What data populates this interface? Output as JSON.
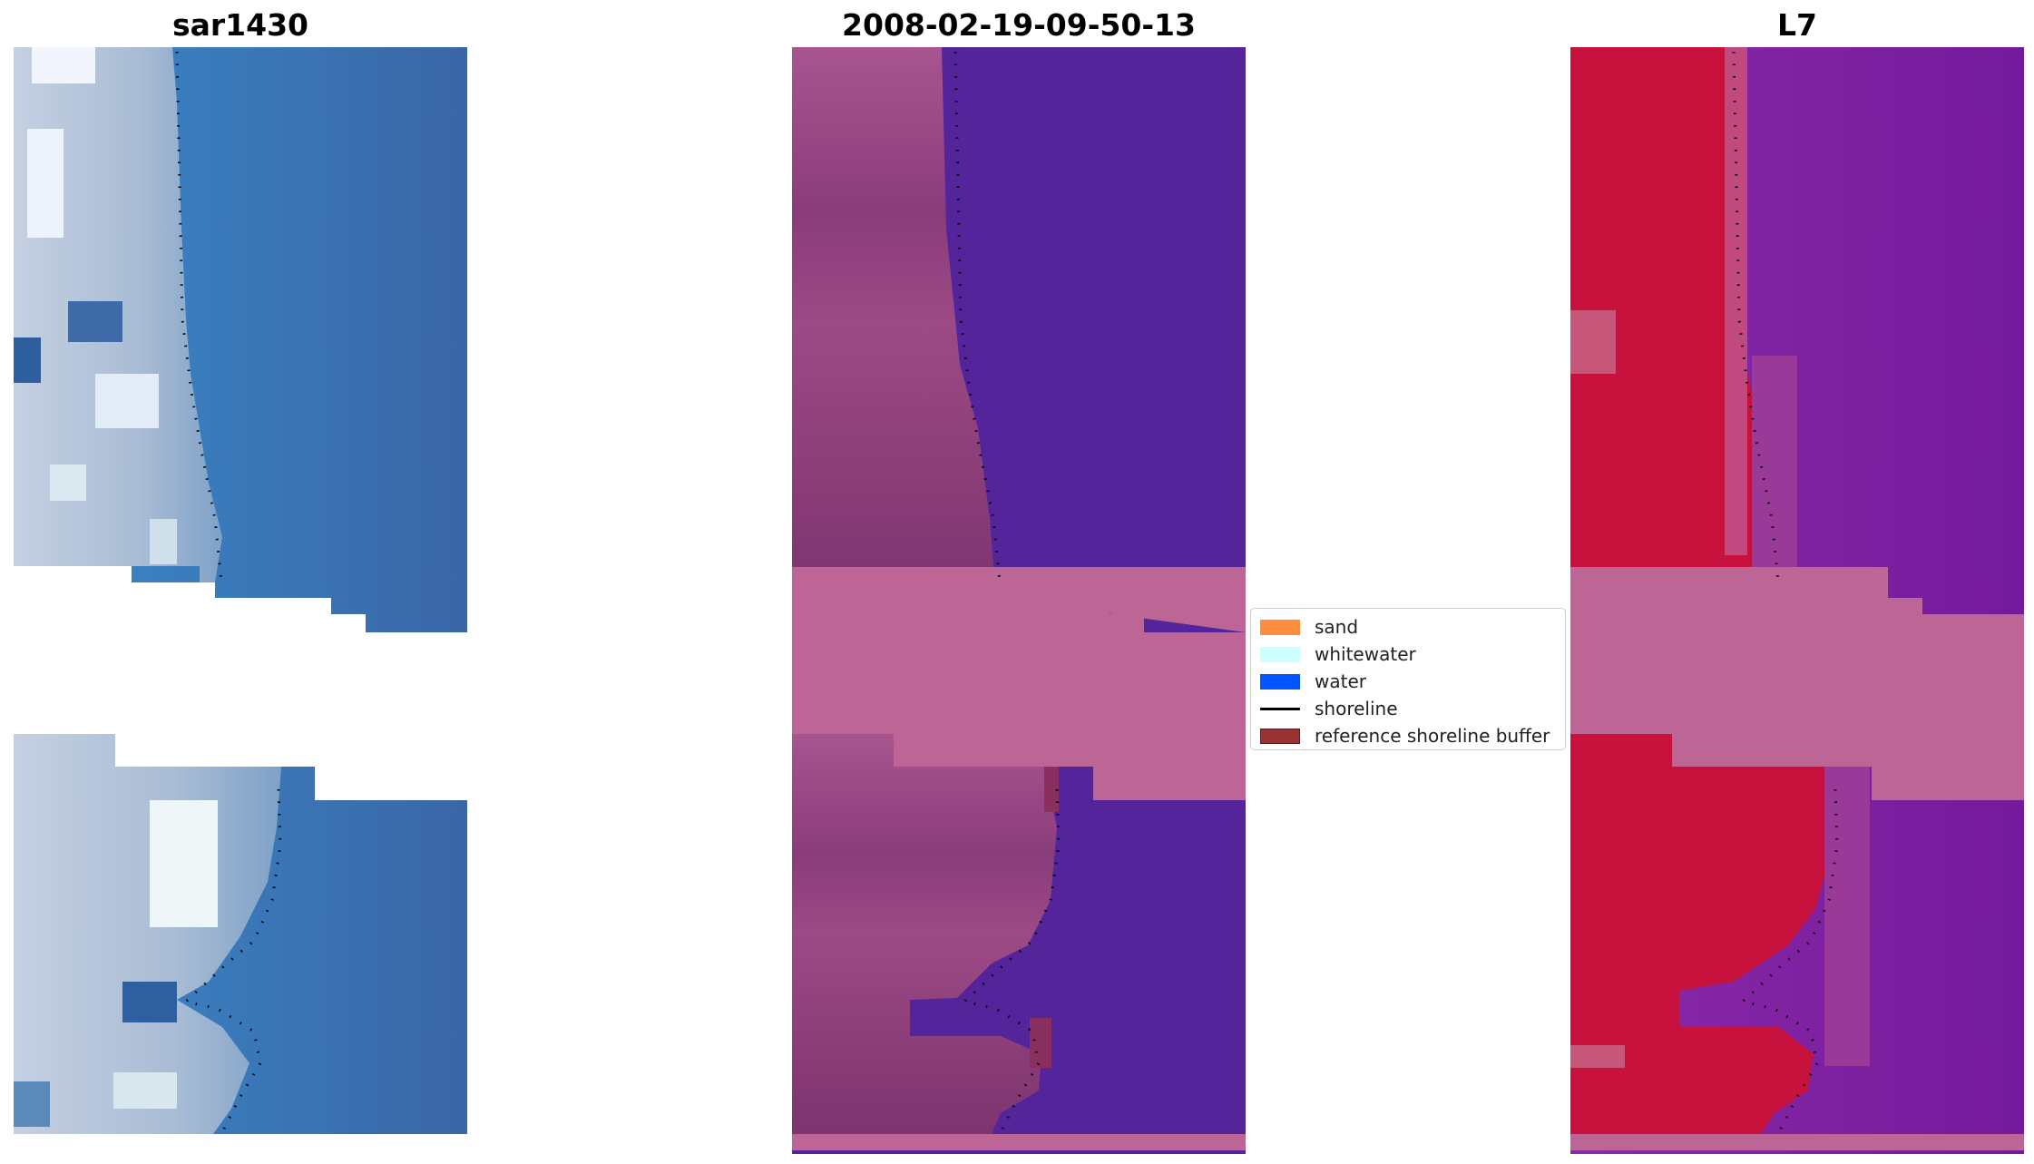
{
  "panels": [
    {
      "title": "sar1430",
      "style": "rgb"
    },
    {
      "title": "2008-02-19-09-50-13",
      "style": "classified"
    },
    {
      "title": "L7",
      "style": "nir"
    }
  ],
  "legend": {
    "items": [
      {
        "label": "sand",
        "color": "#ff8c3c",
        "kind": "patch"
      },
      {
        "label": "whitewater",
        "color": "#ccffff",
        "kind": "patch"
      },
      {
        "label": "water",
        "color": "#0055ff",
        "kind": "patch"
      },
      {
        "label": "shoreline",
        "color": "#000000",
        "kind": "line"
      },
      {
        "label": "reference shoreline buffer",
        "color": "#993333",
        "kind": "patch"
      }
    ]
  },
  "colors": {
    "no_data_band": "#bd6696",
    "classified_water": "#54249a",
    "sand_rgb": "#b9c4d8",
    "water_rgb": "#3d78b8",
    "veg_nir": "#c8123e",
    "water_nir": "#7a1c9c"
  }
}
